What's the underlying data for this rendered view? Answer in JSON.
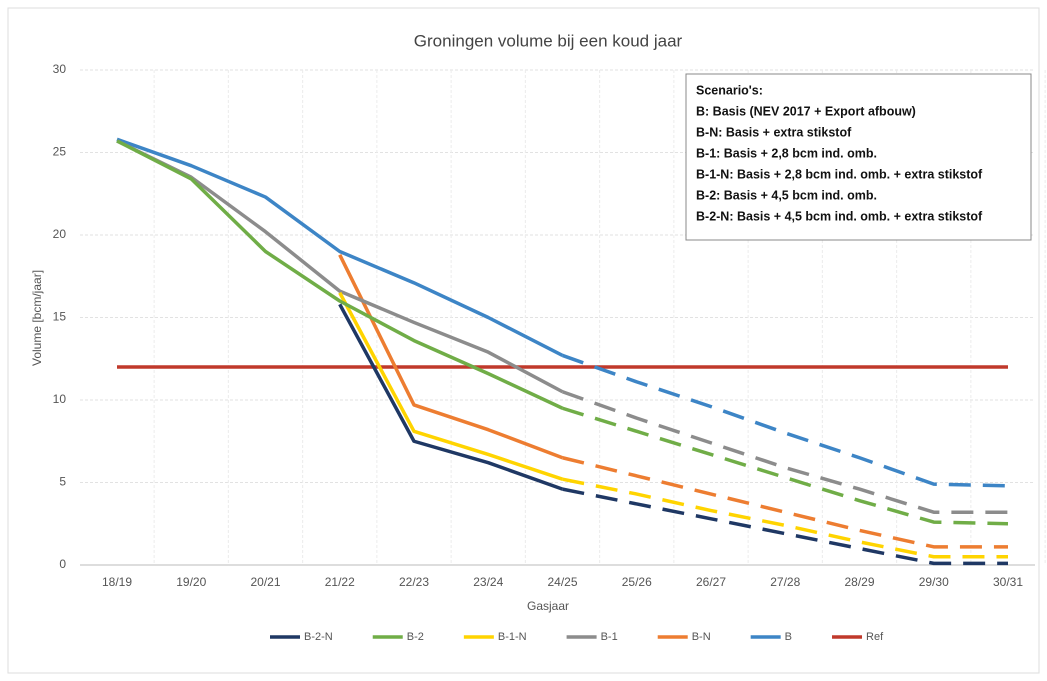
{
  "chart_data": {
    "type": "line",
    "title": "Groningen volume bij een koud jaar",
    "x_label": "Gasjaar",
    "y_label": "Volume [bcm/jaar]",
    "categories": [
      "18/19",
      "19/20",
      "20/21",
      "21/22",
      "22/23",
      "23/24",
      "24/25",
      "25/26",
      "26/27",
      "27/28",
      "28/29",
      "29/30",
      "30/31"
    ],
    "ylim": [
      0,
      30
    ],
    "yticks": [
      0,
      5,
      10,
      15,
      20,
      25,
      30
    ],
    "grid": true,
    "legend": "bottom",
    "annotation": {
      "title": "Scenario's:",
      "lines": [
        "B: Basis (NEV 2017 + Export afbouw)",
        "B-N: Basis + extra stikstof",
        "B-1: Basis + 2,8 bcm ind. omb.",
        "B-1-N: Basis + 2,8 bcm ind. omb. + extra stikstof",
        "B-2: Basis + 4,5 bcm ind. omb.",
        "B-2-N: Basis + 4,5 bcm ind. omb. + extra stikstof"
      ]
    },
    "series": [
      {
        "name": "B-2-N",
        "color": "#1f3864",
        "dashed_from": 6,
        "values": [
          null,
          null,
          null,
          15.8,
          7.5,
          6.2,
          4.6,
          3.7,
          2.8,
          1.9,
          1.0,
          0.1,
          0.1
        ]
      },
      {
        "name": "B-2",
        "color": "#70ad47",
        "dashed_from": 6,
        "values": [
          25.7,
          23.4,
          19.0,
          16.0,
          13.6,
          11.6,
          9.5,
          8.1,
          6.7,
          5.3,
          3.9,
          2.6,
          2.5
        ]
      },
      {
        "name": "B-1-N",
        "color": "#ffd400",
        "dashed_from": 6,
        "values": [
          null,
          null,
          null,
          16.5,
          8.1,
          6.7,
          5.2,
          4.3,
          3.3,
          2.4,
          1.4,
          0.5,
          0.5
        ]
      },
      {
        "name": "B-1",
        "color": "#8c8c8c",
        "dashed_from": 6,
        "values": [
          25.7,
          23.5,
          20.2,
          16.6,
          14.7,
          12.9,
          10.5,
          8.9,
          7.4,
          5.9,
          4.6,
          3.2,
          3.2
        ]
      },
      {
        "name": "B-N",
        "color": "#ed7d31",
        "dashed_from": 6,
        "values": [
          null,
          null,
          null,
          18.8,
          9.7,
          8.2,
          6.5,
          5.4,
          4.3,
          3.2,
          2.1,
          1.1,
          1.1
        ]
      },
      {
        "name": "B",
        "color": "#3d85c6",
        "dashed_from": 6,
        "values": [
          25.8,
          24.2,
          22.3,
          19.0,
          17.1,
          15.0,
          12.7,
          11.1,
          9.6,
          8.0,
          6.5,
          4.9,
          4.8
        ]
      },
      {
        "name": "Ref",
        "color": "#c0392b",
        "values": [
          12,
          12,
          12,
          12,
          12,
          12,
          12,
          12,
          12,
          12,
          12,
          12,
          12
        ]
      }
    ]
  }
}
